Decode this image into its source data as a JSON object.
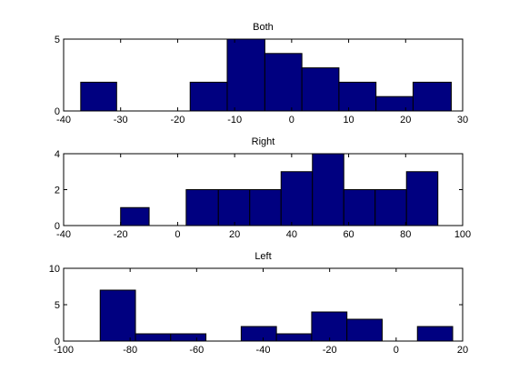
{
  "figure": {
    "background": "#ffffff"
  },
  "chart_data": [
    {
      "type": "bar",
      "subtype": "histogram",
      "title": "Both",
      "xlabel": "",
      "ylabel": "",
      "xlim": [
        -40,
        30
      ],
      "ylim": [
        0,
        5
      ],
      "xticks": [
        -40,
        -30,
        -20,
        -10,
        0,
        10,
        20,
        30
      ],
      "yticks": [
        0,
        5
      ],
      "grid": false,
      "bar_color": "#000080",
      "edge_color": "#000000",
      "bins": [
        {
          "x0": -37,
          "x1": -30.7,
          "count": 2
        },
        {
          "x0": -17.8,
          "x1": -11.3,
          "count": 2
        },
        {
          "x0": -11.3,
          "x1": -4.7,
          "count": 5
        },
        {
          "x0": -4.7,
          "x1": 1.8,
          "count": 4
        },
        {
          "x0": 1.8,
          "x1": 8.3,
          "count": 3
        },
        {
          "x0": 8.3,
          "x1": 14.8,
          "count": 2
        },
        {
          "x0": 14.8,
          "x1": 21.3,
          "count": 1
        },
        {
          "x0": 21.3,
          "x1": 28,
          "count": 2
        }
      ]
    },
    {
      "type": "bar",
      "subtype": "histogram",
      "title": "Right",
      "xlabel": "",
      "ylabel": "",
      "xlim": [
        -40,
        100
      ],
      "ylim": [
        0,
        4
      ],
      "xticks": [
        -40,
        -20,
        0,
        20,
        40,
        60,
        80,
        100
      ],
      "yticks": [
        0,
        2,
        4
      ],
      "grid": false,
      "bar_color": "#000080",
      "edge_color": "#000000",
      "bins": [
        {
          "x0": -20,
          "x1": -10,
          "count": 1
        },
        {
          "x0": 3,
          "x1": 14.3,
          "count": 2
        },
        {
          "x0": 14.3,
          "x1": 25.3,
          "count": 2
        },
        {
          "x0": 25.3,
          "x1": 36.3,
          "count": 2
        },
        {
          "x0": 36.3,
          "x1": 47.3,
          "count": 3
        },
        {
          "x0": 47.3,
          "x1": 58.3,
          "count": 4
        },
        {
          "x0": 58.3,
          "x1": 69.3,
          "count": 2
        },
        {
          "x0": 69.3,
          "x1": 80.3,
          "count": 2
        },
        {
          "x0": 80.3,
          "x1": 91.3,
          "count": 3
        }
      ]
    },
    {
      "type": "bar",
      "subtype": "histogram",
      "title": "Left",
      "xlabel": "",
      "ylabel": "",
      "xlim": [
        -100,
        20
      ],
      "ylim": [
        0,
        10
      ],
      "xticks": [
        -100,
        -80,
        -60,
        -40,
        -20,
        0,
        20
      ],
      "yticks": [
        0,
        5,
        10
      ],
      "grid": false,
      "bar_color": "#000080",
      "edge_color": "#000000",
      "bins": [
        {
          "x0": -89,
          "x1": -78.4,
          "count": 7
        },
        {
          "x0": -78.4,
          "x1": -67.8,
          "count": 1
        },
        {
          "x0": -67.8,
          "x1": -57.2,
          "count": 1
        },
        {
          "x0": -46.6,
          "x1": -36,
          "count": 2
        },
        {
          "x0": -36,
          "x1": -25.4,
          "count": 1
        },
        {
          "x0": -25.4,
          "x1": -14.8,
          "count": 4
        },
        {
          "x0": -14.8,
          "x1": -4.2,
          "count": 3
        },
        {
          "x0": 6.4,
          "x1": 17,
          "count": 2
        }
      ]
    }
  ]
}
